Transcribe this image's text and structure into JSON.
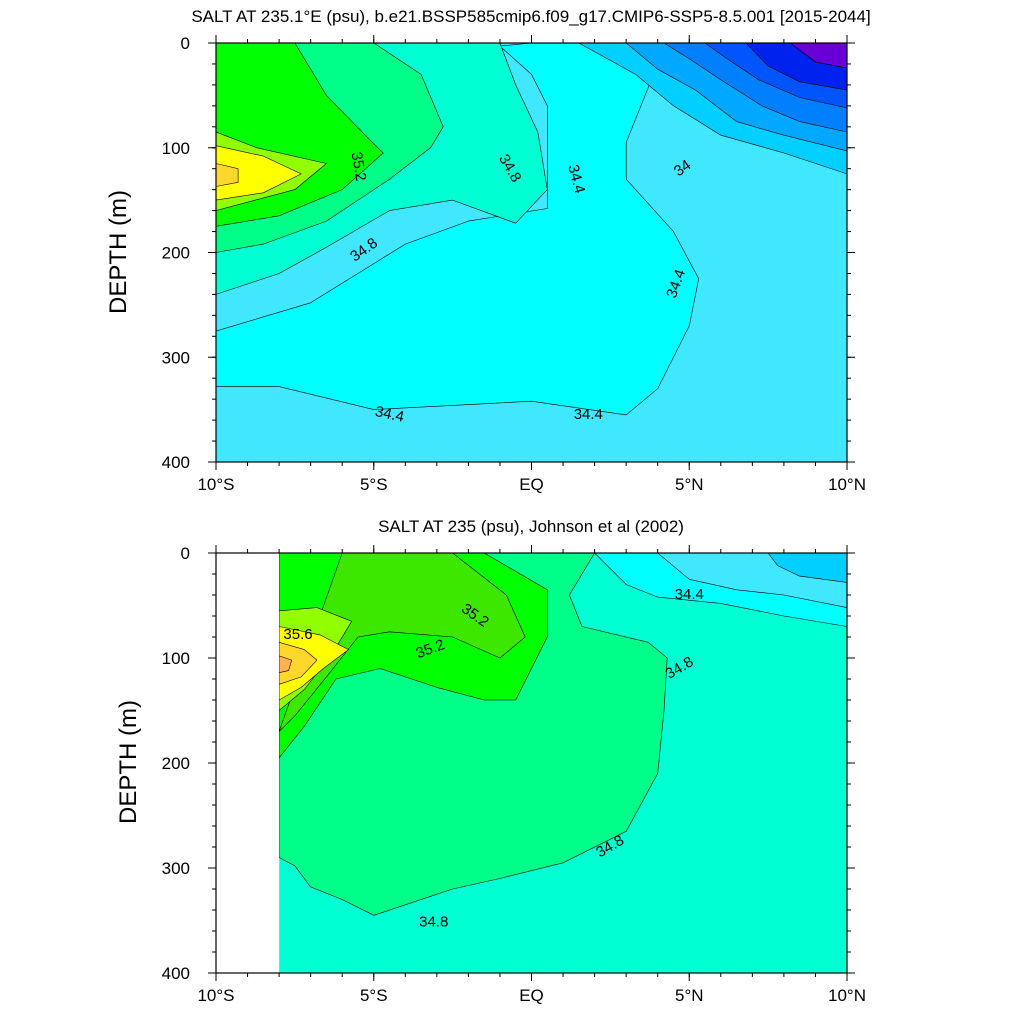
{
  "chart_data": [
    {
      "type": "contour",
      "title": "SALT AT 235.1°E (psu), b.e21.BSSP585cmip6.f09_g17.CMIP6-SSP5-8.5.001 [2015-2044]",
      "xlabel": "",
      "ylabel": "DEPTH (m)",
      "xlim": [
        -10,
        10
      ],
      "ylim": [
        400,
        0
      ],
      "x_ticks": [
        -10,
        -5,
        0,
        5,
        10
      ],
      "x_tick_labels": [
        "10°S",
        "5°S",
        "EQ",
        "5°N",
        "10°N"
      ],
      "y_ticks": [
        0,
        100,
        200,
        300,
        400
      ],
      "y_tick_labels": [
        "0",
        "100",
        "200",
        "300",
        "400"
      ],
      "contour_labels": [
        "35.2",
        "34.8",
        "34.8",
        "34.4",
        "34.4",
        "34",
        "34.4",
        "34.4"
      ],
      "data_extent": [
        -10,
        10
      ],
      "regions": [
        {
          "color": "#3fe8ff",
          "points": [
            [
              -10,
              0
            ],
            [
              10,
              0
            ],
            [
              10,
              400
            ],
            [
              -10,
              400
            ]
          ]
        },
        {
          "color": "#00ffff",
          "points": [
            [
              -10,
              275
            ],
            [
              -7,
              248
            ],
            [
              -4,
              192
            ],
            [
              -2,
              170
            ],
            [
              0.5,
              158
            ],
            [
              0.5,
              60
            ],
            [
              0,
              30
            ],
            [
              -1,
              3
            ],
            [
              0,
              0
            ],
            [
              5,
              0
            ],
            [
              4,
              20
            ],
            [
              3,
              95
            ],
            [
              3,
              130
            ],
            [
              4.5,
              180
            ],
            [
              5.3,
              225
            ],
            [
              5,
              270
            ],
            [
              4,
              330
            ],
            [
              3,
              355
            ],
            [
              0,
              342
            ],
            [
              -5,
              350
            ],
            [
              -8,
              328
            ],
            [
              -10,
              328
            ]
          ]
        },
        {
          "color": "#00ffd2",
          "points": [
            [
              -10,
              0
            ],
            [
              -1,
              0
            ],
            [
              -0.5,
              40
            ],
            [
              0.2,
              85
            ],
            [
              0.5,
              140
            ],
            [
              -0.5,
              172
            ],
            [
              -2.5,
              150
            ],
            [
              -4.5,
              160
            ],
            [
              -6.5,
              195
            ],
            [
              -8,
              220
            ],
            [
              -10,
              240
            ]
          ]
        },
        {
          "color": "#00ff89",
          "points": [
            [
              -10,
              0
            ],
            [
              -5,
              0
            ],
            [
              -3.5,
              30
            ],
            [
              -2.8,
              80
            ],
            [
              -3.2,
              100
            ],
            [
              -4.5,
              130
            ],
            [
              -6.5,
              170
            ],
            [
              -8.5,
              192
            ],
            [
              -10,
              200
            ]
          ]
        },
        {
          "color": "#00ff00",
          "points": [
            [
              -10,
              0
            ],
            [
              -7.5,
              0
            ],
            [
              -6.5,
              50
            ],
            [
              -5.2,
              90
            ],
            [
              -4.7,
              105
            ],
            [
              -6,
              140
            ],
            [
              -8,
              165
            ],
            [
              -10,
              175
            ]
          ]
        },
        {
          "color": "#91ff00",
          "points": [
            [
              -10,
              85
            ],
            [
              -8.7,
              100
            ],
            [
              -6.5,
              115
            ],
            [
              -7.5,
              140
            ],
            [
              -10,
              160
            ]
          ]
        },
        {
          "color": "#ffff00",
          "points": [
            [
              -10,
              98
            ],
            [
              -8.5,
              108
            ],
            [
              -7.3,
              125
            ],
            [
              -8.5,
              143
            ],
            [
              -10,
              150
            ]
          ]
        },
        {
          "color": "#ffd72b",
          "points": [
            [
              -10,
              115
            ],
            [
              -9.3,
              120
            ],
            [
              -9.3,
              133
            ],
            [
              -10,
              137
            ]
          ]
        },
        {
          "color": "#00cfff",
          "points": [
            [
              1.5,
              0
            ],
            [
              10,
              0
            ],
            [
              10,
              125
            ],
            [
              8,
              105
            ],
            [
              6,
              88
            ],
            [
              4.5,
              60
            ],
            [
              3.3,
              30
            ]
          ]
        },
        {
          "color": "#00a8ff",
          "points": [
            [
              3,
              0
            ],
            [
              10,
              0
            ],
            [
              10,
              103
            ],
            [
              8,
              88
            ],
            [
              6.5,
              75
            ],
            [
              5.2,
              45
            ],
            [
              4,
              25
            ]
          ]
        },
        {
          "color": "#0080ff",
          "points": [
            [
              4.2,
              0
            ],
            [
              10,
              0
            ],
            [
              10,
              85
            ],
            [
              8.5,
              75
            ],
            [
              7.3,
              60
            ],
            [
              6,
              35
            ],
            [
              5,
              15
            ]
          ]
        },
        {
          "color": "#0055ff",
          "points": [
            [
              5.5,
              0
            ],
            [
              10,
              0
            ],
            [
              10,
              62
            ],
            [
              8.5,
              52
            ],
            [
              7.2,
              35
            ],
            [
              6.2,
              15
            ]
          ]
        },
        {
          "color": "#0022ef",
          "points": [
            [
              6.8,
              0
            ],
            [
              10,
              0
            ],
            [
              10,
              45
            ],
            [
              8.5,
              37
            ],
            [
              7.5,
              22
            ]
          ]
        },
        {
          "color": "#6a00d8",
          "points": [
            [
              8.2,
              0
            ],
            [
              10,
              0
            ],
            [
              10,
              24
            ],
            [
              9,
              18
            ]
          ]
        }
      ]
    },
    {
      "type": "contour",
      "title": "SALT AT 235 (psu), Johnson et al (2002)",
      "xlabel": "",
      "ylabel": "DEPTH (m)",
      "xlim": [
        -10,
        10
      ],
      "ylim": [
        400,
        0
      ],
      "x_ticks": [
        -10,
        -5,
        0,
        5,
        10
      ],
      "x_tick_labels": [
        "10°S",
        "5°S",
        "EQ",
        "5°N",
        "10°N"
      ],
      "y_ticks": [
        0,
        100,
        200,
        300,
        400
      ],
      "y_tick_labels": [
        "0",
        "100",
        "200",
        "300",
        "400"
      ],
      "contour_labels": [
        "35.2",
        "35.6",
        "35.2",
        "34.4",
        "34.8",
        "34.8",
        "34.8"
      ],
      "data_extent": [
        -8,
        10
      ],
      "regions": [
        {
          "color": "#00ffd2",
          "points": [
            [
              -8,
              0
            ],
            [
              10,
              0
            ],
            [
              10,
              400
            ],
            [
              -8,
              400
            ]
          ]
        },
        {
          "color": "#00ff89",
          "points": [
            [
              -8,
              0
            ],
            [
              2,
              0
            ],
            [
              1.2,
              40
            ],
            [
              1.6,
              70
            ],
            [
              3.7,
              85
            ],
            [
              4.3,
              100
            ],
            [
              4.2,
              150
            ],
            [
              4,
              210
            ],
            [
              3,
              265
            ],
            [
              1,
              295
            ],
            [
              -1,
              310
            ],
            [
              -2.5,
              320
            ],
            [
              -4,
              335
            ],
            [
              -5,
              345
            ],
            [
              -6,
              330
            ],
            [
              -7,
              318
            ],
            [
              -7.5,
              298
            ],
            [
              -8,
              290
            ]
          ]
        },
        {
          "color": "#00ff00",
          "points": [
            [
              -8,
              0
            ],
            [
              -1.5,
              0
            ],
            [
              0.5,
              35
            ],
            [
              0.5,
              80
            ],
            [
              0,
              110
            ],
            [
              -0.5,
              140
            ],
            [
              -1.5,
              140
            ],
            [
              -3,
              128
            ],
            [
              -4.8,
              110
            ],
            [
              -6.2,
              120
            ],
            [
              -7.2,
              165
            ],
            [
              -8,
              195
            ]
          ]
        },
        {
          "color": "#3ce800",
          "points": [
            [
              -6,
              0
            ],
            [
              -2.5,
              0
            ],
            [
              -0.8,
              40
            ],
            [
              -0.2,
              80
            ],
            [
              -1,
              100
            ],
            [
              -2.5,
              80
            ],
            [
              -4.5,
              75
            ],
            [
              -5.5,
              80
            ],
            [
              -6.5,
              118
            ],
            [
              -7.5,
              155
            ],
            [
              -8,
              170
            ]
          ]
        },
        {
          "color": "#91ff00",
          "points": [
            [
              -8,
              55
            ],
            [
              -6.8,
              52
            ],
            [
              -5.7,
              65
            ],
            [
              -6.3,
              95
            ],
            [
              -7.2,
              130
            ],
            [
              -8,
              150
            ]
          ]
        },
        {
          "color": "#ffff00",
          "points": [
            [
              -8,
              70
            ],
            [
              -6.7,
              78
            ],
            [
              -5.8,
              92
            ],
            [
              -6.6,
              110
            ],
            [
              -7.3,
              128
            ],
            [
              -8,
              140
            ]
          ]
        },
        {
          "color": "#ffd72b",
          "points": [
            [
              -8,
              85
            ],
            [
              -7.2,
              92
            ],
            [
              -6.8,
              102
            ],
            [
              -7.3,
              118
            ],
            [
              -8,
              125
            ]
          ]
        },
        {
          "color": "#ffb050",
          "points": [
            [
              -8,
              98
            ],
            [
              -7.6,
              102
            ],
            [
              -7.7,
              112
            ],
            [
              -8,
              114
            ]
          ]
        },
        {
          "color": "#00ffff",
          "points": [
            [
              2,
              0
            ],
            [
              10,
              0
            ],
            [
              10,
              70
            ],
            [
              8,
              60
            ],
            [
              6,
              48
            ],
            [
              4,
              42
            ],
            [
              3,
              30
            ]
          ]
        },
        {
          "color": "#3fe8ff",
          "points": [
            [
              4,
              0
            ],
            [
              10,
              0
            ],
            [
              10,
              52
            ],
            [
              8,
              40
            ],
            [
              6.5,
              35
            ],
            [
              5,
              25
            ]
          ]
        },
        {
          "color": "#00cfff",
          "points": [
            [
              7.5,
              0
            ],
            [
              10,
              0
            ],
            [
              10,
              28
            ],
            [
              8.5,
              22
            ],
            [
              7.8,
              12
            ]
          ]
        }
      ]
    }
  ]
}
